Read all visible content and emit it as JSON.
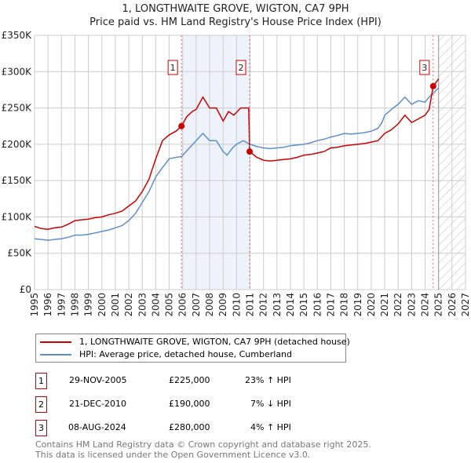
{
  "chart_data": {
    "type": "line",
    "title": "1, LONGTHWAITE GROVE, WIGTON, CA7 9PH",
    "subtitle": "Price paid vs. HM Land Registry's House Price Index (HPI)",
    "xlim": [
      1995,
      2027
    ],
    "ylim": [
      0,
      350000
    ],
    "x_ticks": [
      "1995",
      "1996",
      "1997",
      "1998",
      "1999",
      "2000",
      "2001",
      "2002",
      "2003",
      "2004",
      "2005",
      "2006",
      "2007",
      "2008",
      "2009",
      "2010",
      "2011",
      "2012",
      "2013",
      "2014",
      "2015",
      "2016",
      "2017",
      "2018",
      "2019",
      "2020",
      "2021",
      "2022",
      "2023",
      "2024",
      "2025",
      "2026",
      "2027"
    ],
    "y_ticks": [
      {
        "v": 0,
        "label": "£0"
      },
      {
        "v": 50000,
        "label": "£50K"
      },
      {
        "v": 100000,
        "label": "£100K"
      },
      {
        "v": 150000,
        "label": "£150K"
      },
      {
        "v": 200000,
        "label": "£200K"
      },
      {
        "v": 250000,
        "label": "£250K"
      },
      {
        "v": 300000,
        "label": "£300K"
      },
      {
        "v": 350000,
        "label": "£350K"
      }
    ],
    "grid": true,
    "shaded_span": [
      2005.91,
      2010.97
    ],
    "forecast_hatch_from": 2025.0,
    "series": [
      {
        "name": "1, LONGTHWAITE GROVE, WIGTON, CA7 9PH (detached house)",
        "color": "#cc0000",
        "x": [
          1995,
          1995.5,
          1996,
          1996.5,
          1997,
          1997.5,
          1998,
          1998.5,
          1999,
          1999.5,
          2000,
          2000.5,
          2001,
          2001.5,
          2002,
          2002.5,
          2003,
          2003.5,
          2004,
          2004.5,
          2005,
          2005.5,
          2005.91,
          2006.3,
          2006.7,
          2007,
          2007.5,
          2008,
          2008.5,
          2009,
          2009.4,
          2009.8,
          2010.3,
          2010.9,
          2010.97,
          2011.5,
          2012,
          2012.5,
          2013,
          2013.5,
          2014,
          2014.5,
          2015,
          2015.5,
          2016,
          2016.5,
          2017,
          2017.5,
          2018,
          2018.5,
          2019,
          2019.5,
          2020,
          2020.5,
          2021,
          2021.5,
          2022,
          2022.5,
          2023,
          2023.5,
          2024,
          2024.3,
          2024.6,
          2024.8,
          2025
        ],
        "y": [
          87000,
          84000,
          83000,
          85000,
          86000,
          90000,
          95000,
          96000,
          97000,
          99000,
          100000,
          103000,
          105000,
          108000,
          115000,
          122000,
          135000,
          152000,
          180000,
          205000,
          213000,
          218000,
          225000,
          238000,
          245000,
          248000,
          265000,
          250000,
          250000,
          232000,
          245000,
          240000,
          250000,
          250000,
          190000,
          182000,
          178000,
          177000,
          178000,
          179000,
          180000,
          182000,
          185000,
          186000,
          188000,
          190000,
          195000,
          196000,
          198000,
          199000,
          200000,
          201000,
          203000,
          205000,
          215000,
          220000,
          228000,
          240000,
          230000,
          235000,
          240000,
          248000,
          280000,
          285000,
          290000
        ]
      },
      {
        "name": "HPI: Average price, detached house, Cumberland",
        "color": "#5b8fd1",
        "x": [
          1995,
          1995.5,
          1996,
          1996.5,
          1997,
          1997.5,
          1998,
          1998.5,
          1999,
          1999.5,
          2000,
          2000.5,
          2001,
          2001.5,
          2002,
          2002.5,
          2003,
          2003.5,
          2004,
          2004.5,
          2005,
          2005.5,
          2005.91,
          2006.5,
          2007,
          2007.5,
          2008,
          2008.5,
          2009,
          2009.3,
          2009.7,
          2010,
          2010.5,
          2011,
          2011.5,
          2012,
          2012.5,
          2013,
          2013.5,
          2014,
          2014.5,
          2015,
          2015.5,
          2016,
          2016.5,
          2017,
          2017.5,
          2018,
          2018.5,
          2019,
          2019.5,
          2020,
          2020.5,
          2020.8,
          2021,
          2021.5,
          2022,
          2022.5,
          2023,
          2023.5,
          2024,
          2024.3,
          2024.6,
          2025
        ],
        "y": [
          70000,
          69000,
          68000,
          69000,
          70000,
          72000,
          75000,
          75000,
          76000,
          78000,
          80000,
          82000,
          85000,
          88000,
          95000,
          105000,
          120000,
          135000,
          155000,
          168000,
          180000,
          182000,
          183000,
          195000,
          205000,
          215000,
          205000,
          205000,
          190000,
          185000,
          195000,
          200000,
          205000,
          200000,
          197000,
          195000,
          194000,
          195000,
          196000,
          198000,
          199000,
          200000,
          202000,
          205000,
          207000,
          210000,
          212000,
          215000,
          214000,
          215000,
          216000,
          218000,
          222000,
          230000,
          240000,
          248000,
          255000,
          265000,
          255000,
          260000,
          258000,
          265000,
          270000,
          278000
        ]
      }
    ],
    "sales": [
      {
        "n": "1",
        "x": 2005.91,
        "y": 225000,
        "date": "29-NOV-2005",
        "price": "£225,000",
        "hpi": "23% ↑ HPI"
      },
      {
        "n": "2",
        "x": 2010.97,
        "y": 190000,
        "date": "21-DEC-2010",
        "price": "£190,000",
        "hpi": "7% ↓ HPI"
      },
      {
        "n": "3",
        "x": 2024.6,
        "y": 280000,
        "date": "08-AUG-2024",
        "price": "£280,000",
        "hpi": "4% ↑ HPI"
      }
    ]
  },
  "legend": {
    "red": "1, LONGTHWAITE GROVE, WIGTON, CA7 9PH (detached house)",
    "blue": "HPI: Average price, detached house, Cumberland"
  },
  "footer": {
    "line1": "Contains HM Land Registry data © Crown copyright and database right 2025.",
    "line2": "This data is licensed under the Open Government Licence v3.0."
  }
}
